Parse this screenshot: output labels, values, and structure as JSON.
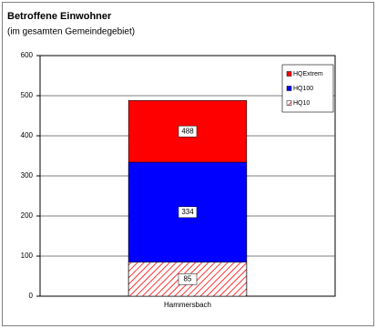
{
  "chart_data": {
    "type": "bar",
    "title": "Betroffene Einwohner",
    "subtitle": "(im gesamten Gemeindegebiet)",
    "categories": [
      "Hammersbach"
    ],
    "series": [
      {
        "name": "HQExtrem",
        "color": "#ff0000",
        "values": [
          488
        ]
      },
      {
        "name": "HQ100",
        "color": "#0000ff",
        "values": [
          334
        ]
      },
      {
        "name": "HQ10",
        "color": "#ff0000",
        "hatch": true,
        "values": [
          85
        ]
      }
    ],
    "ylim": [
      0,
      600
    ],
    "yticks": [
      0,
      100,
      200,
      300,
      400,
      500,
      600
    ],
    "grid": true,
    "legend": "top-right"
  }
}
